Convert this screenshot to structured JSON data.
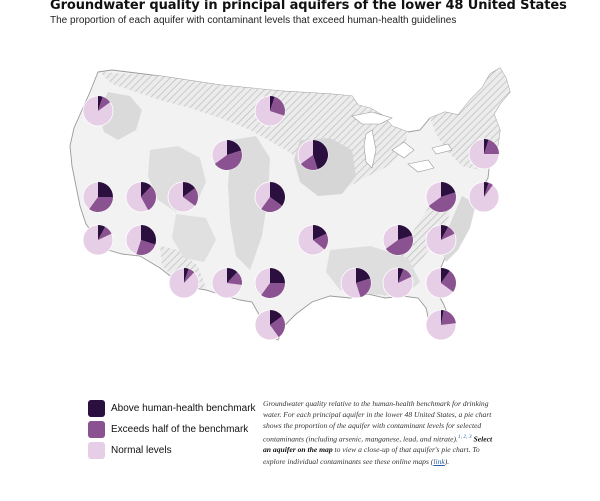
{
  "title": "Groundwater quality in principal aquifers of the lower 48 United States",
  "subtitle": "The proportion of each aquifer with contaminant levels that exceed human-health guidelines",
  "colors": {
    "above": "#2b0f3f",
    "exceeds_half": "#8a5290",
    "normal": "#e6cfe6",
    "land": "#f0f0f0",
    "aquifer_shade": "#d8d8d8",
    "hatch": "#c2c2c2",
    "outline": "#9a9a9a"
  },
  "legend": [
    {
      "key": "above",
      "label": "Above human-health benchmark",
      "color": "#2b0f3f"
    },
    {
      "key": "exceeds_half",
      "label": "Exceeds half of the benchmark",
      "color": "#8a5290"
    },
    {
      "key": "normal",
      "label": "Normal levels",
      "color": "#e6cfe6"
    }
  ],
  "caption": {
    "text1": "Groundwater quality relative to the human-health benchmark for drinking water. For each principal aquifer in the lower 48 United States, a pie chart shows the proportion of the aquifer with contaminant levels for selected contaminants (including arsenic, manganese, lead, and nitrate).",
    "refs": [
      "1",
      "2",
      "3"
    ],
    "bold": "Select an aquifer on the map",
    "text2": "to view a close-up of that aquifer's pie chart. To explore individual contaminants see these online maps",
    "link": "link",
    "tail": ")."
  },
  "aquifers": [
    {
      "above": 0.05,
      "exceeds_half": 0.1
    },
    {
      "above": 0.05,
      "exceeds_half": 0.25
    },
    {
      "above": 0.2,
      "exceeds_half": 0.45
    },
    {
      "above": 0.45,
      "exceeds_half": 0.2
    },
    {
      "above": 0.05,
      "exceeds_half": 0.2
    },
    {
      "above": 0.25,
      "exceeds_half": 0.35
    },
    {
      "above": 0.12,
      "exceeds_half": 0.3
    },
    {
      "above": 0.15,
      "exceeds_half": 0.2
    },
    {
      "above": 0.35,
      "exceeds_half": 0.25
    },
    {
      "above": 0.2,
      "exceeds_half": 0.45
    },
    {
      "above": 0.05,
      "exceeds_half": 0.05
    },
    {
      "above": 0.08,
      "exceeds_half": 0.1
    },
    {
      "above": 0.3,
      "exceeds_half": 0.25
    },
    {
      "above": 0.18,
      "exceeds_half": 0.18
    },
    {
      "above": 0.2,
      "exceeds_half": 0.45
    },
    {
      "above": 0.08,
      "exceeds_half": 0.1
    },
    {
      "above": 0.05,
      "exceeds_half": 0.07
    },
    {
      "above": 0.12,
      "exceeds_half": 0.15
    },
    {
      "above": 0.25,
      "exceeds_half": 0.35
    },
    {
      "above": 0.2,
      "exceeds_half": 0.25
    },
    {
      "above": 0.06,
      "exceeds_half": 0.12
    },
    {
      "above": 0.1,
      "exceeds_half": 0.25
    },
    {
      "above": 0.15,
      "exceeds_half": 0.25
    },
    {
      "above": 0.03,
      "exceeds_half": 0.2
    },
    {
      "above": 0.05,
      "exceeds_half": 0.15
    },
    {
      "above": 0.05,
      "exceeds_half": 0.25
    }
  ]
}
